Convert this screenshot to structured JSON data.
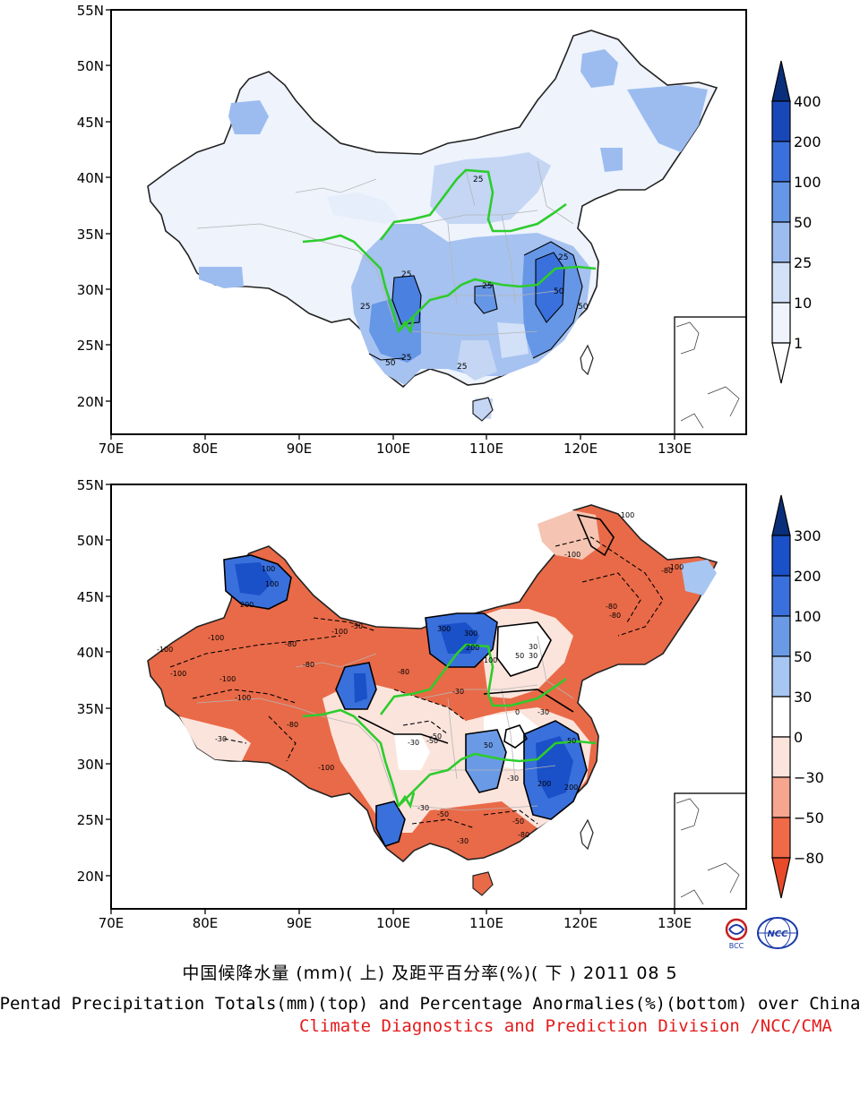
{
  "top_map": {
    "lat_labels": [
      "55N",
      "50N",
      "45N",
      "40N",
      "35N",
      "30N",
      "25N",
      "20N"
    ],
    "lon_labels": [
      "70E",
      "80E",
      "90E",
      "100E",
      "110E",
      "120E",
      "130E"
    ],
    "legend_labels": [
      "400",
      "200",
      "100",
      "50",
      "25",
      "10",
      "1"
    ],
    "legend_colors": [
      "#0a2f7a",
      "#1848b8",
      "#3a70dc",
      "#6696e6",
      "#9cbcf0",
      "#d2e0f8",
      "#ffffff"
    ],
    "contour_labels": [
      "25",
      "25",
      "25",
      "25",
      "50",
      "25",
      "50",
      "50",
      "25",
      "25"
    ]
  },
  "bottom_map": {
    "lat_labels": [
      "55N",
      "50N",
      "45N",
      "40N",
      "35N",
      "30N",
      "25N",
      "20N"
    ],
    "lon_labels": [
      "70E",
      "80E",
      "90E",
      "100E",
      "110E",
      "120E",
      "130E"
    ],
    "legend_labels": [
      "300",
      "200",
      "100",
      "50",
      "30",
      "0",
      "−30",
      "−50",
      "−80"
    ],
    "legend_colors": [
      "#0a2f7a",
      "#1a50c8",
      "#3a70dc",
      "#6a9ae6",
      "#a8c6f2",
      "#ffffff",
      "#fbe4dc",
      "#f6a68e",
      "#f06a48",
      "#e84a2a"
    ],
    "contour_labels": [
      "-100",
      "-80",
      "-100",
      "-100",
      "-100",
      "-80",
      "-100",
      "-30",
      "-80",
      "-100",
      "-50",
      "100",
      "200",
      "300",
      "200",
      "100",
      "50",
      "30",
      "-30",
      "-50",
      "-80",
      "-30",
      "-50",
      "200",
      "50",
      "-30",
      "-80",
      "-100",
      "-50",
      "-30",
      "-80",
      "-100",
      "-30",
      "0",
      "30",
      "300",
      "200",
      "100",
      "50",
      "-80",
      "-100",
      "-50",
      "-30",
      "-80",
      "-100"
    ]
  },
  "captions": {
    "cn": "中国候降水量 (mm)( 上) 及距平百分率(%)( 下 ) 2011 08 5",
    "en": "Pentad Precipitation Totals(mm)(top) and Percentage Anormalies(%)(bottom) over China",
    "credit": "Climate Diagnostics and Prediction Division /NCC/CMA"
  },
  "logos": {
    "left": "BCC",
    "right": "NCC"
  },
  "colors": {
    "boundary": "#000000",
    "river": "#2dcc2d",
    "credit": "#e41b1b"
  }
}
